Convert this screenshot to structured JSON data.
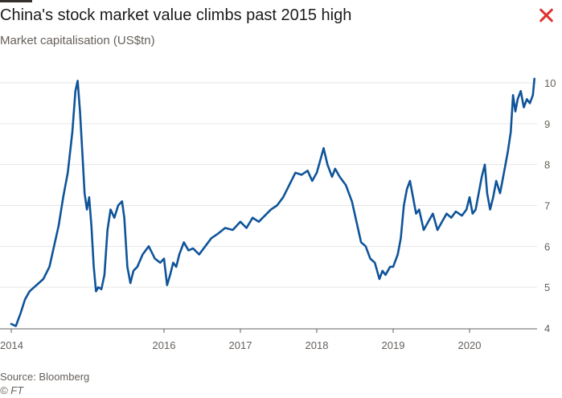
{
  "header": {
    "title": "China's stock market value climbs past 2015 high",
    "subtitle": "Market capitalisation (US$tn)",
    "close_icon": "close-icon",
    "close_color": "#e0322d"
  },
  "footer": {
    "source": "Source: Bloomberg",
    "credit": "© FT"
  },
  "chart_data": {
    "type": "line",
    "title": "China's stock market value climbs past 2015 high",
    "subtitle": "Market capitalisation (US$tn)",
    "xlabel": "",
    "ylabel": "",
    "x_ticks": [
      "2014",
      "2016",
      "2017",
      "2018",
      "2019",
      "2020"
    ],
    "x_tick_values": [
      2014.0,
      2016.0,
      2017.0,
      2018.0,
      2019.0,
      2020.0
    ],
    "y_ticks": [
      4,
      5,
      6,
      7,
      8,
      9,
      10
    ],
    "ylim": [
      4,
      10
    ],
    "xlim": [
      2014.0,
      2020.85
    ],
    "grid": "horizontal",
    "line_color": "#0f5499",
    "series": [
      {
        "values": [
          [
            2014.0,
            4.1
          ],
          [
            2014.06,
            4.05
          ],
          [
            2014.12,
            4.35
          ],
          [
            2014.18,
            4.7
          ],
          [
            2014.24,
            4.9
          ],
          [
            2014.3,
            5.0
          ],
          [
            2014.36,
            5.1
          ],
          [
            2014.42,
            5.2
          ],
          [
            2014.5,
            5.5
          ],
          [
            2014.56,
            6.0
          ],
          [
            2014.62,
            6.5
          ],
          [
            2014.68,
            7.2
          ],
          [
            2014.74,
            7.8
          ],
          [
            2014.8,
            8.8
          ],
          [
            2014.84,
            9.8
          ],
          [
            2014.87,
            10.05
          ],
          [
            2014.9,
            9.3
          ],
          [
            2014.93,
            8.3
          ],
          [
            2014.96,
            7.3
          ],
          [
            2014.99,
            6.9
          ],
          [
            2015.02,
            7.2
          ],
          [
            2015.05,
            6.5
          ],
          [
            2015.08,
            5.5
          ],
          [
            2015.11,
            4.9
          ],
          [
            2015.14,
            5.0
          ],
          [
            2015.18,
            4.95
          ],
          [
            2015.22,
            5.3
          ],
          [
            2015.26,
            6.4
          ],
          [
            2015.3,
            6.9
          ],
          [
            2015.35,
            6.7
          ],
          [
            2015.4,
            7.0
          ],
          [
            2015.45,
            7.1
          ],
          [
            2015.48,
            6.7
          ],
          [
            2015.52,
            5.5
          ],
          [
            2015.56,
            5.1
          ],
          [
            2015.6,
            5.4
          ],
          [
            2015.65,
            5.5
          ],
          [
            2015.72,
            5.8
          ],
          [
            2015.8,
            6.0
          ],
          [
            2015.88,
            5.7
          ],
          [
            2015.95,
            5.6
          ],
          [
            2016.0,
            5.7
          ],
          [
            2016.04,
            5.05
          ],
          [
            2016.08,
            5.3
          ],
          [
            2016.12,
            5.6
          ],
          [
            2016.16,
            5.5
          ],
          [
            2016.2,
            5.8
          ],
          [
            2016.26,
            6.1
          ],
          [
            2016.32,
            5.9
          ],
          [
            2016.38,
            5.95
          ],
          [
            2016.46,
            5.8
          ],
          [
            2016.54,
            6.0
          ],
          [
            2016.62,
            6.2
          ],
          [
            2016.7,
            6.3
          ],
          [
            2016.8,
            6.45
          ],
          [
            2016.9,
            6.4
          ],
          [
            2017.0,
            6.6
          ],
          [
            2017.08,
            6.45
          ],
          [
            2017.16,
            6.7
          ],
          [
            2017.24,
            6.6
          ],
          [
            2017.32,
            6.75
          ],
          [
            2017.4,
            6.9
          ],
          [
            2017.48,
            7.0
          ],
          [
            2017.56,
            7.2
          ],
          [
            2017.64,
            7.5
          ],
          [
            2017.72,
            7.8
          ],
          [
            2017.8,
            7.75
          ],
          [
            2017.88,
            7.85
          ],
          [
            2017.94,
            7.6
          ],
          [
            2018.0,
            7.8
          ],
          [
            2018.06,
            8.2
          ],
          [
            2018.09,
            8.4
          ],
          [
            2018.14,
            8.0
          ],
          [
            2018.2,
            7.7
          ],
          [
            2018.24,
            7.9
          ],
          [
            2018.3,
            7.7
          ],
          [
            2018.38,
            7.5
          ],
          [
            2018.46,
            7.1
          ],
          [
            2018.52,
            6.6
          ],
          [
            2018.58,
            6.1
          ],
          [
            2018.64,
            6.0
          ],
          [
            2018.7,
            5.7
          ],
          [
            2018.76,
            5.6
          ],
          [
            2018.82,
            5.2
          ],
          [
            2018.86,
            5.4
          ],
          [
            2018.9,
            5.3
          ],
          [
            2018.96,
            5.5
          ],
          [
            2019.0,
            5.5
          ],
          [
            2019.06,
            5.8
          ],
          [
            2019.1,
            6.2
          ],
          [
            2019.14,
            7.0
          ],
          [
            2019.18,
            7.4
          ],
          [
            2019.22,
            7.6
          ],
          [
            2019.26,
            7.2
          ],
          [
            2019.3,
            6.8
          ],
          [
            2019.34,
            6.9
          ],
          [
            2019.4,
            6.4
          ],
          [
            2019.46,
            6.6
          ],
          [
            2019.52,
            6.8
          ],
          [
            2019.58,
            6.4
          ],
          [
            2019.64,
            6.6
          ],
          [
            2019.7,
            6.8
          ],
          [
            2019.76,
            6.7
          ],
          [
            2019.82,
            6.85
          ],
          [
            2019.9,
            6.75
          ],
          [
            2019.96,
            6.9
          ],
          [
            2020.0,
            7.2
          ],
          [
            2020.04,
            6.8
          ],
          [
            2020.08,
            6.9
          ],
          [
            2020.12,
            7.3
          ],
          [
            2020.16,
            7.7
          ],
          [
            2020.2,
            8.0
          ],
          [
            2020.23,
            7.3
          ],
          [
            2020.27,
            6.9
          ],
          [
            2020.31,
            7.2
          ],
          [
            2020.35,
            7.6
          ],
          [
            2020.4,
            7.3
          ],
          [
            2020.45,
            7.8
          ],
          [
            2020.5,
            8.3
          ],
          [
            2020.54,
            8.8
          ],
          [
            2020.57,
            9.7
          ],
          [
            2020.6,
            9.3
          ],
          [
            2020.63,
            9.6
          ],
          [
            2020.67,
            9.8
          ],
          [
            2020.71,
            9.4
          ],
          [
            2020.75,
            9.6
          ],
          [
            2020.79,
            9.5
          ],
          [
            2020.83,
            9.7
          ],
          [
            2020.85,
            10.1
          ]
        ]
      }
    ]
  }
}
